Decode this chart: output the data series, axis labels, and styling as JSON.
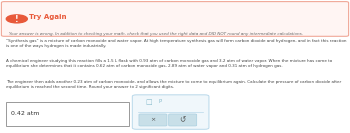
{
  "try_again_label": "Try Again",
  "error_icon_color": "#e8593a",
  "error_border_color": "#f0a898",
  "error_bg_color": "#fff5f3",
  "error_text": "Your answer is wrong. In addition to checking your math, check that you used the right data and DID NOT round any intermediate calculations.",
  "body_text_1": "“Synthesis gas” is a mixture of carbon monoxide and water vapor. At high temperature synthesis gas will form carbon dioxide and hydrogen, and in fact this reaction is one of the ways hydrogen is made industrially.",
  "body_text_2": "A chemical engineer studying this reaction fills a 1.5 L flask with 0.93 atm of carbon monoxide gas and 3.2 atm of water vapor. When the mixture has come to equilibrium she determines that it contains 0.62 atm of carbon monoxide gas, 2.89 atm of water vapor and 0.31 atm of hydrogen gas.",
  "body_text_3": "The engineer then adds another 0.23 atm of carbon monoxide, and allows the mixture to come to equilibrium again. Calculate the pressure of carbon dioxide after equilibrium is reached the second time. Round your answer to 2 significant digits.",
  "answer_value": "0.42 atm",
  "panel_bg": "#ffffff",
  "body_text_color": "#444444",
  "small_box_border": "#b8d8ea",
  "small_box_bg": "#f0f7fb",
  "btn_color": "#c8dfe8",
  "btn_border": "#aacfe0"
}
